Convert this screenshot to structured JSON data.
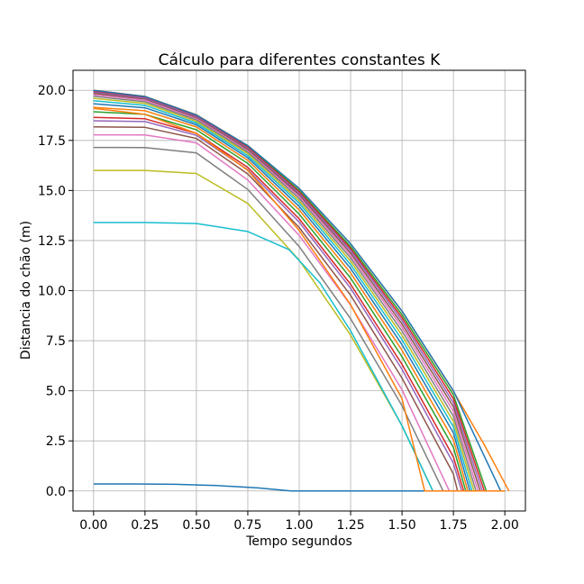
{
  "chart_data": {
    "type": "line",
    "title": "Cálculo para diferentes constantes K",
    "xlabel": "Tempo segundos",
    "ylabel": "Distancia do chão (m)",
    "xlim": [
      -0.1,
      2.1
    ],
    "ylim": [
      -1.0,
      21.0
    ],
    "xticks": [
      "0.00",
      "0.25",
      "0.50",
      "0.75",
      "1.00",
      "1.25",
      "1.50",
      "1.75",
      "2.00"
    ],
    "yticks": [
      "0.0",
      "2.5",
      "5.0",
      "7.5",
      "10.0",
      "12.5",
      "15.0",
      "17.5",
      "20.0"
    ],
    "grid": true,
    "legend": "none",
    "colors": [
      "#1f77b4",
      "#ff7f0e",
      "#2ca02c",
      "#d62728",
      "#9467bd",
      "#8c564b",
      "#e377c2",
      "#7f7f7f",
      "#bcbd22",
      "#17becf"
    ],
    "series": [
      {
        "values": [
          [
            0.0,
            0.35
          ],
          [
            0.2,
            0.35
          ],
          [
            0.4,
            0.33
          ],
          [
            0.6,
            0.27
          ],
          [
            0.8,
            0.15
          ],
          [
            0.96,
            0.0
          ],
          [
            2.0,
            0.0
          ]
        ]
      },
      {
        "values": [
          [
            0.0,
            20.0
          ],
          [
            0.25,
            19.7
          ],
          [
            0.5,
            18.78
          ],
          [
            0.75,
            17.24
          ],
          [
            1.0,
            15.1
          ],
          [
            1.25,
            12.34
          ],
          [
            1.5,
            8.97
          ],
          [
            1.75,
            4.98
          ],
          [
            1.9,
            2.3
          ],
          [
            2.02,
            0.0
          ]
        ]
      },
      {
        "values": [
          [
            0.0,
            19.98
          ],
          [
            0.25,
            19.68
          ],
          [
            0.5,
            18.76
          ],
          [
            0.75,
            17.2
          ],
          [
            1.0,
            15.0
          ],
          [
            1.25,
            12.2
          ],
          [
            1.5,
            8.8
          ],
          [
            1.75,
            4.8
          ],
          [
            1.91,
            0.0
          ],
          [
            2.0,
            0.0
          ]
        ]
      },
      {
        "values": [
          [
            0.0,
            19.95
          ],
          [
            0.25,
            19.65
          ],
          [
            0.5,
            18.72
          ],
          [
            0.75,
            17.15
          ],
          [
            1.0,
            14.93
          ],
          [
            1.25,
            12.1
          ],
          [
            1.5,
            8.65
          ],
          [
            1.75,
            4.6
          ],
          [
            1.9,
            0.0
          ],
          [
            2.0,
            0.0
          ]
        ]
      },
      {
        "values": [
          [
            0.0,
            19.9
          ],
          [
            0.25,
            19.6
          ],
          [
            0.5,
            18.68
          ],
          [
            0.75,
            17.1
          ],
          [
            1.0,
            14.86
          ],
          [
            1.25,
            12.0
          ],
          [
            1.5,
            8.5
          ],
          [
            1.75,
            4.4
          ],
          [
            1.89,
            0.0
          ],
          [
            2.0,
            0.0
          ]
        ]
      },
      {
        "values": [
          [
            0.0,
            19.85
          ],
          [
            0.25,
            19.55
          ],
          [
            0.5,
            18.63
          ],
          [
            0.75,
            17.05
          ],
          [
            1.0,
            14.78
          ],
          [
            1.25,
            11.88
          ],
          [
            1.5,
            8.33
          ],
          [
            1.75,
            4.2
          ],
          [
            1.88,
            0.0
          ],
          [
            2.0,
            0.0
          ]
        ]
      },
      {
        "values": [
          [
            0.0,
            19.78
          ],
          [
            0.25,
            19.5
          ],
          [
            0.5,
            18.58
          ],
          [
            0.75,
            16.98
          ],
          [
            1.0,
            14.7
          ],
          [
            1.25,
            11.76
          ],
          [
            1.5,
            8.17
          ],
          [
            1.75,
            3.97
          ],
          [
            1.87,
            0.0
          ],
          [
            2.0,
            0.0
          ]
        ]
      },
      {
        "values": [
          [
            0.0,
            19.7
          ],
          [
            0.25,
            19.43
          ],
          [
            0.5,
            18.52
          ],
          [
            0.75,
            16.92
          ],
          [
            1.0,
            14.6
          ],
          [
            1.25,
            11.63
          ],
          [
            1.5,
            7.98
          ],
          [
            1.75,
            3.73
          ],
          [
            1.86,
            0.0
          ],
          [
            2.0,
            0.0
          ]
        ]
      },
      {
        "values": [
          [
            0.0,
            19.6
          ],
          [
            0.25,
            19.35
          ],
          [
            0.5,
            18.45
          ],
          [
            0.75,
            16.84
          ],
          [
            1.0,
            14.48
          ],
          [
            1.25,
            11.47
          ],
          [
            1.5,
            7.77
          ],
          [
            1.75,
            3.47
          ],
          [
            1.85,
            0.0
          ],
          [
            2.0,
            0.0
          ]
        ]
      },
      {
        "values": [
          [
            0.0,
            19.48
          ],
          [
            0.25,
            19.25
          ],
          [
            0.5,
            18.37
          ],
          [
            0.75,
            16.74
          ],
          [
            1.0,
            14.36
          ],
          [
            1.25,
            11.3
          ],
          [
            1.5,
            7.55
          ],
          [
            1.75,
            3.2
          ],
          [
            1.84,
            0.0
          ],
          [
            2.0,
            0.0
          ]
        ]
      },
      {
        "values": [
          [
            0.0,
            19.33
          ],
          [
            0.25,
            19.13
          ],
          [
            0.5,
            18.28
          ],
          [
            0.75,
            16.63
          ],
          [
            1.0,
            14.2
          ],
          [
            1.25,
            11.11
          ],
          [
            1.5,
            7.3
          ],
          [
            1.75,
            2.9
          ],
          [
            1.83,
            0.0
          ],
          [
            2.0,
            0.0
          ]
        ]
      },
      {
        "values": [
          [
            0.0,
            19.15
          ],
          [
            0.25,
            18.98
          ],
          [
            0.5,
            18.17
          ],
          [
            0.75,
            16.5
          ],
          [
            1.0,
            14.03
          ],
          [
            1.25,
            10.88
          ],
          [
            1.5,
            7.02
          ],
          [
            1.75,
            2.55
          ],
          [
            1.82,
            0.0
          ],
          [
            2.0,
            0.0
          ]
        ]
      },
      {
        "values": [
          [
            0.0,
            18.93
          ],
          [
            0.25,
            18.8
          ],
          [
            0.5,
            18.03
          ],
          [
            0.75,
            16.35
          ],
          [
            1.0,
            13.82
          ],
          [
            1.25,
            10.63
          ],
          [
            1.5,
            6.7
          ],
          [
            1.75,
            2.17
          ],
          [
            1.81,
            0.0
          ],
          [
            2.0,
            0.0
          ]
        ]
      },
      {
        "values": [
          [
            0.0,
            18.65
          ],
          [
            0.25,
            18.58
          ],
          [
            0.5,
            17.85
          ],
          [
            0.75,
            16.15
          ],
          [
            1.0,
            13.58
          ],
          [
            1.25,
            10.32
          ],
          [
            1.5,
            6.32
          ],
          [
            1.75,
            1.7
          ],
          [
            1.8,
            0.0
          ],
          [
            2.0,
            0.0
          ]
        ]
      },
      {
        "values": [
          [
            0.0,
            18.48
          ],
          [
            0.25,
            18.44
          ],
          [
            0.5,
            17.75
          ],
          [
            0.75,
            16.03
          ],
          [
            1.0,
            13.42
          ],
          [
            1.25,
            10.12
          ],
          [
            1.5,
            6.07
          ],
          [
            1.75,
            1.38
          ],
          [
            1.79,
            0.0
          ],
          [
            2.0,
            0.0
          ]
        ]
      },
      {
        "values": [
          [
            0.0,
            18.18
          ],
          [
            0.25,
            18.15
          ],
          [
            0.5,
            17.6
          ],
          [
            0.75,
            15.82
          ],
          [
            1.0,
            13.15
          ],
          [
            1.25,
            9.77
          ],
          [
            1.5,
            5.63
          ],
          [
            1.75,
            0.85
          ],
          [
            1.77,
            0.0
          ],
          [
            2.0,
            0.0
          ]
        ]
      },
      {
        "values": [
          [
            0.0,
            17.78
          ],
          [
            0.25,
            17.77
          ],
          [
            0.5,
            17.38
          ],
          [
            0.75,
            15.52
          ],
          [
            1.0,
            12.76
          ],
          [
            1.25,
            9.28
          ],
          [
            1.5,
            5.05
          ],
          [
            1.73,
            0.0
          ],
          [
            2.0,
            0.0
          ]
        ]
      },
      {
        "values": [
          [
            0.0,
            17.15
          ],
          [
            0.25,
            17.14
          ],
          [
            0.5,
            16.88
          ],
          [
            0.75,
            15.05
          ],
          [
            1.0,
            12.2
          ],
          [
            1.25,
            8.6
          ],
          [
            1.5,
            4.25
          ],
          [
            1.7,
            0.0
          ],
          [
            2.0,
            0.0
          ]
        ]
      },
      {
        "values": [
          [
            0.0,
            16.0
          ],
          [
            0.25,
            16.0
          ],
          [
            0.5,
            15.85
          ],
          [
            0.75,
            14.35
          ],
          [
            1.0,
            11.52
          ],
          [
            1.25,
            7.78
          ],
          [
            1.5,
            3.25
          ],
          [
            1.65,
            0.0
          ],
          [
            2.0,
            0.0
          ]
        ]
      },
      {
        "values": [
          [
            0.0,
            13.4
          ],
          [
            0.25,
            13.4
          ],
          [
            0.5,
            13.35
          ],
          [
            0.75,
            12.95
          ],
          [
            0.95,
            12.05
          ],
          [
            1.1,
            10.4
          ],
          [
            1.25,
            8.0
          ],
          [
            1.5,
            3.25
          ],
          [
            1.65,
            0.0
          ],
          [
            2.0,
            0.0
          ]
        ]
      },
      {
        "values": [
          [
            0.0,
            20.0
          ],
          [
            0.25,
            19.69
          ],
          [
            0.5,
            18.77
          ],
          [
            0.75,
            17.24
          ],
          [
            1.0,
            15.1
          ],
          [
            1.25,
            12.34
          ],
          [
            1.5,
            8.98
          ],
          [
            1.75,
            5.0
          ],
          [
            1.98,
            0.0
          ],
          [
            2.0,
            0.0
          ]
        ]
      },
      {
        "values": [
          [
            0.0,
            19.1
          ],
          [
            0.25,
            18.8
          ],
          [
            0.5,
            17.85
          ],
          [
            0.75,
            16.0
          ],
          [
            1.0,
            13.0
          ],
          [
            1.25,
            9.3
          ],
          [
            1.5,
            4.6
          ],
          [
            1.61,
            0.0
          ],
          [
            2.0,
            0.0
          ]
        ]
      }
    ]
  }
}
